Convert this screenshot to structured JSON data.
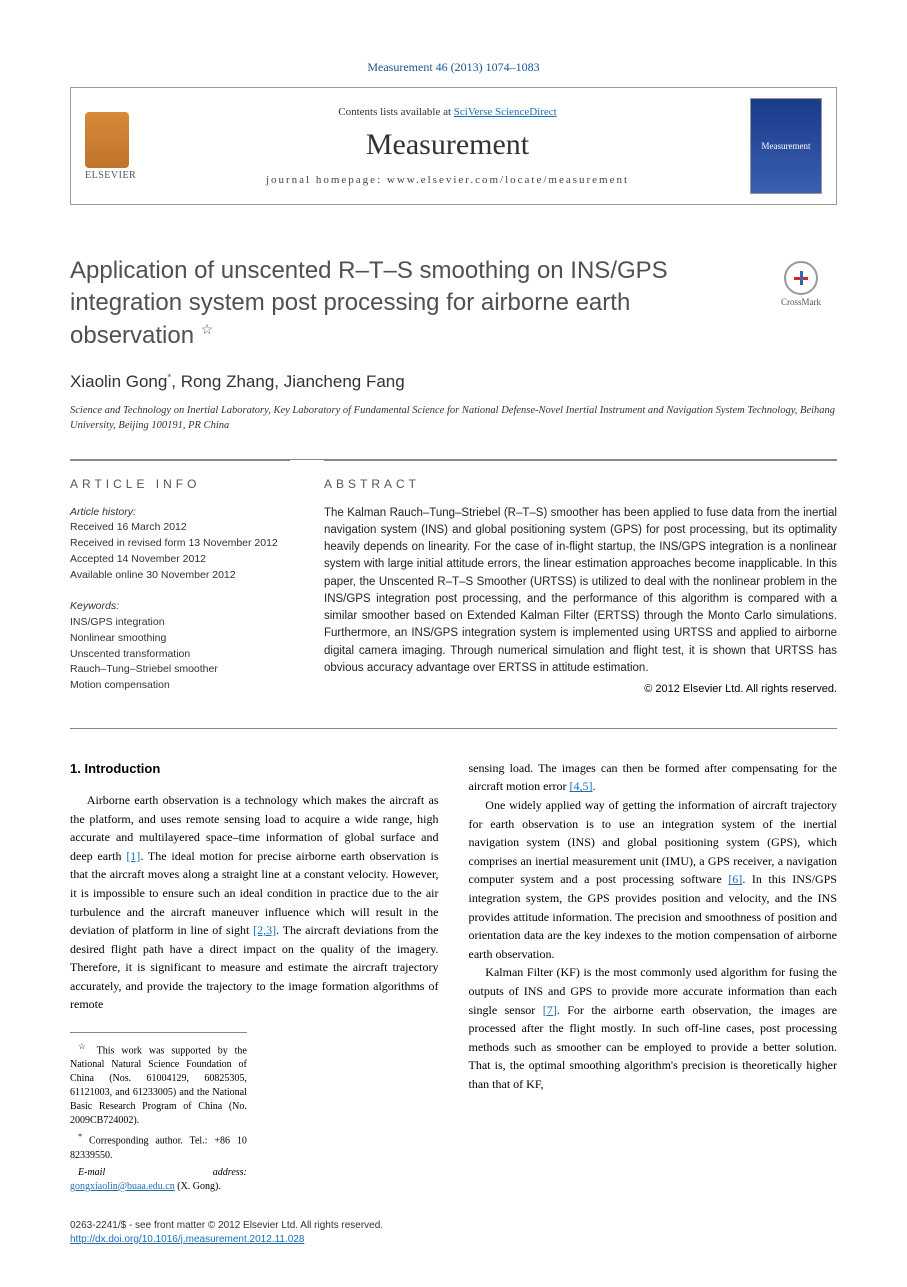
{
  "meta": {
    "top_citation": "Measurement 46 (2013) 1074–1083",
    "contents_prefix": "Contents lists available at ",
    "contents_link": "SciVerse ScienceDirect",
    "journal": "Measurement",
    "homepage_label": "journal homepage: ",
    "homepage_url": "www.elsevier.com/locate/measurement",
    "publisher_name": "ELSEVIER",
    "cover_text": "Measurement"
  },
  "crossmark_label": "CrossMark",
  "title": "Application of unscented R–T–S smoothing on INS/GPS integration system post processing for airborne earth observation",
  "title_note_marker": "☆",
  "authors_html": {
    "a1_name": "Xiaolin Gong",
    "a1_sup": "*",
    "a2_name": "Rong Zhang",
    "a3_name": "Jiancheng Fang",
    "sep": ", "
  },
  "affiliation": "Science and Technology on Inertial Laboratory, Key Laboratory of Fundamental Science for National Defense-Novel Inertial Instrument and Navigation System Technology, Beihang University, Beijing 100191, PR China",
  "article_info": {
    "heading": "article info",
    "history_label": "Article history:",
    "received": "Received 16 March 2012",
    "revised": "Received in revised form 13 November 2012",
    "accepted": "Accepted 14 November 2012",
    "online": "Available online 30 November 2012",
    "keywords_label": "Keywords:",
    "keywords": [
      "INS/GPS integration",
      "Nonlinear smoothing",
      "Unscented transformation",
      "Rauch–Tung–Striebel smoother",
      "Motion compensation"
    ]
  },
  "abstract": {
    "heading": "abstract",
    "text": "The Kalman Rauch–Tung–Striebel (R–T–S) smoother has been applied to fuse data from the inertial navigation system (INS) and global positioning system (GPS) for post processing, but its optimality heavily depends on linearity. For the case of in-flight startup, the INS/GPS integration is a nonlinear system with large initial attitude errors, the linear estimation approaches become inapplicable. In this paper, the Unscented R–T–S Smoother (URTSS) is utilized to deal with the nonlinear problem in the INS/GPS integration post processing, and the performance of this algorithm is compared with a similar smoother based on Extended Kalman Filter (ERTSS) through the Monto Carlo simulations. Furthermore, an INS/GPS integration system is implemented using URTSS and applied to airborne digital camera imaging. Through numerical simulation and flight test, it is shown that URTSS has obvious accuracy advantage over ERTSS in attitude estimation.",
    "copyright": "© 2012 Elsevier Ltd. All rights reserved."
  },
  "body": {
    "intro_heading": "1. Introduction",
    "p1_a": "Airborne earth observation is a technology which makes the aircraft as the platform, and uses remote sensing load to acquire a wide range, high accurate and multilayered space–time information of global surface and deep earth ",
    "p1_ref1": "[1]",
    "p1_b": ". The ideal motion for precise airborne earth observation is that the aircraft moves along a straight line at a constant velocity. However, it is impossible to ensure such an ideal condition in practice due to the air turbulence and the aircraft maneuver influence which will result in the deviation of platform in line of sight ",
    "p1_ref2": "[2,3]",
    "p1_c": ". The aircraft deviations from the desired flight path have a direct impact on the quality of the imagery. Therefore, it is significant to measure and estimate the aircraft trajectory accurately, and provide the trajectory to the image formation algorithms of remote",
    "p1_cont_a": "sensing load. The images can then be formed after compensating for the aircraft motion error ",
    "p1_cont_ref": "[4,5]",
    "p1_cont_b": ".",
    "p2_a": "One widely applied way of getting the information of aircraft trajectory for earth observation is to use an integration system of the inertial navigation system (INS) and global positioning system (GPS), which comprises an inertial measurement unit (IMU), a GPS receiver, a navigation computer system and a post processing software ",
    "p2_ref": "[6]",
    "p2_b": ". In this INS/GPS integration system, the GPS provides position and velocity, and the INS provides attitude information. The precision and smoothness of position and orientation data are the key indexes to the motion compensation of airborne earth observation.",
    "p3_a": "Kalman Filter (KF) is the most commonly used algorithm for fusing the outputs of INS and GPS to provide more accurate information than each single sensor ",
    "p3_ref": "[7]",
    "p3_b": ". For the airborne earth observation, the images are processed after the flight mostly. In such off-line cases, post processing methods such as smoother can be employed to provide a better solution. That is, the optimal smoothing algorithm's precision is theoretically higher than that of KF,"
  },
  "footnotes": {
    "funding_marker": "☆",
    "funding": " This work was supported by the National Natural Science Foundation of China (Nos. 61004129, 60825305, 61121003, and 61233005) and the National Basic Research Program of China (No. 2009CB724002).",
    "corr_marker": "*",
    "corr": " Corresponding author. Tel.: +86 10 82339550.",
    "email_label": "E-mail address: ",
    "email": "gongxiaolin@buaa.edu.cn",
    "email_suffix": " (X. Gong)."
  },
  "bottom": {
    "issn_line": "0263-2241/$ - see front matter © 2012 Elsevier Ltd. All rights reserved.",
    "doi": "http://dx.doi.org/10.1016/j.measurement.2012.11.028"
  },
  "colors": {
    "link": "#1a6fb8",
    "title_gray": "#505050",
    "rule": "#888888"
  }
}
